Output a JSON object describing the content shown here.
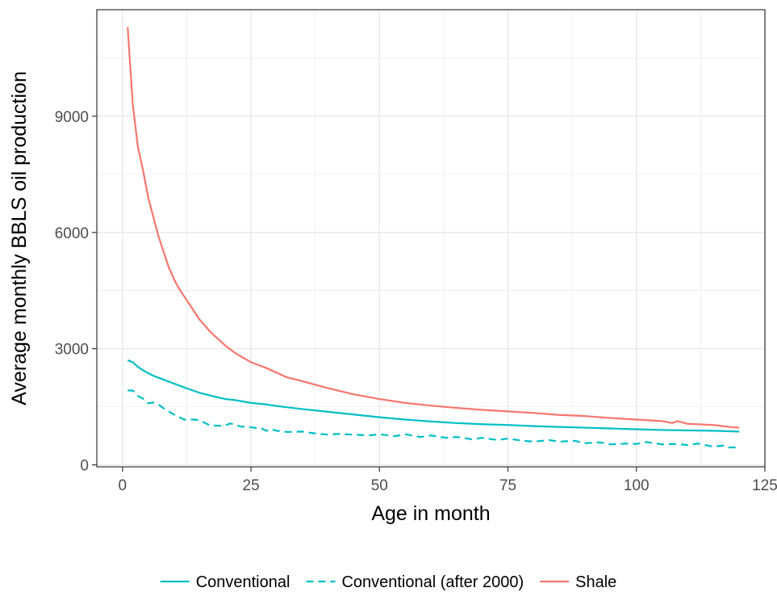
{
  "chart_data": {
    "type": "line",
    "xlabel": "Age in month",
    "ylabel": "Average monthly BBLS oil production",
    "xlim": [
      -5,
      125
    ],
    "ylim": [
      -50,
      11750
    ],
    "x_ticks": [
      0,
      25,
      50,
      75,
      100,
      125
    ],
    "x_tick_labels": [
      "0",
      "25",
      "50",
      "75",
      "100",
      "125"
    ],
    "y_ticks": [
      0,
      3000,
      6000,
      9000
    ],
    "y_tick_labels": [
      "0",
      "3000",
      "6000",
      "9000"
    ],
    "grid": true,
    "legend_position": "bottom",
    "series": [
      {
        "name": "Conventional",
        "color": "#00BFC4",
        "dash": "solid",
        "x": [
          1,
          2,
          3,
          4,
          5,
          6,
          7,
          8,
          10,
          12,
          15,
          18,
          20,
          22,
          25,
          28,
          30,
          35,
          40,
          45,
          50,
          55,
          60,
          65,
          70,
          75,
          80,
          85,
          90,
          95,
          100,
          105,
          110,
          115,
          120
        ],
        "y": [
          2700,
          2650,
          2530,
          2440,
          2370,
          2300,
          2250,
          2200,
          2100,
          2000,
          1860,
          1760,
          1700,
          1670,
          1600,
          1560,
          1520,
          1440,
          1370,
          1300,
          1230,
          1170,
          1120,
          1080,
          1050,
          1030,
          1000,
          980,
          960,
          940,
          920,
          900,
          890,
          880,
          860
        ]
      },
      {
        "name": "Conventional (after 2000)",
        "color": "#00BFC4",
        "dash": "dashed",
        "x": [
          1,
          2,
          3,
          4,
          5,
          6,
          7,
          8,
          9,
          10,
          12,
          14,
          15,
          17,
          19,
          20,
          21,
          23,
          25,
          27,
          28,
          29,
          30,
          32,
          35,
          37,
          40,
          42,
          45,
          48,
          50,
          53,
          55,
          58,
          60,
          63,
          65,
          68,
          70,
          73,
          75,
          78,
          80,
          83,
          85,
          88,
          90,
          93,
          95,
          98,
          100,
          102,
          105,
          108,
          110,
          112,
          115,
          117,
          118,
          120
        ],
        "y": [
          1920,
          1920,
          1780,
          1710,
          1590,
          1610,
          1560,
          1460,
          1380,
          1300,
          1170,
          1170,
          1150,
          1020,
          1010,
          1020,
          1070,
          990,
          970,
          940,
          880,
          920,
          880,
          850,
          860,
          820,
          780,
          800,
          780,
          760,
          790,
          740,
          790,
          720,
          760,
          700,
          720,
          660,
          700,
          640,
          680,
          620,
          600,
          640,
          600,
          620,
          560,
          580,
          530,
          550,
          540,
          590,
          530,
          540,
          510,
          550,
          470,
          500,
          450,
          450
        ]
      },
      {
        "name": "Shale",
        "color": "#F8766D",
        "dash": "solid",
        "x": [
          1,
          2,
          3,
          4,
          5,
          6,
          7,
          8,
          9,
          10,
          11,
          12,
          13,
          14,
          15,
          16,
          17,
          18,
          19,
          20,
          22,
          25,
          28,
          30,
          32,
          35,
          40,
          45,
          50,
          55,
          60,
          65,
          70,
          75,
          80,
          85,
          90,
          95,
          100,
          105,
          107,
          108,
          110,
          115,
          118,
          120
        ],
        "y": [
          11300,
          9300,
          8200,
          7600,
          6900,
          6400,
          5900,
          5500,
          5100,
          4800,
          4550,
          4350,
          4150,
          3950,
          3750,
          3600,
          3450,
          3320,
          3200,
          3080,
          2880,
          2650,
          2500,
          2380,
          2260,
          2160,
          1980,
          1820,
          1700,
          1600,
          1530,
          1470,
          1420,
          1380,
          1340,
          1290,
          1260,
          1210,
          1170,
          1130,
          1080,
          1130,
          1060,
          1030,
          980,
          960
        ]
      }
    ]
  }
}
